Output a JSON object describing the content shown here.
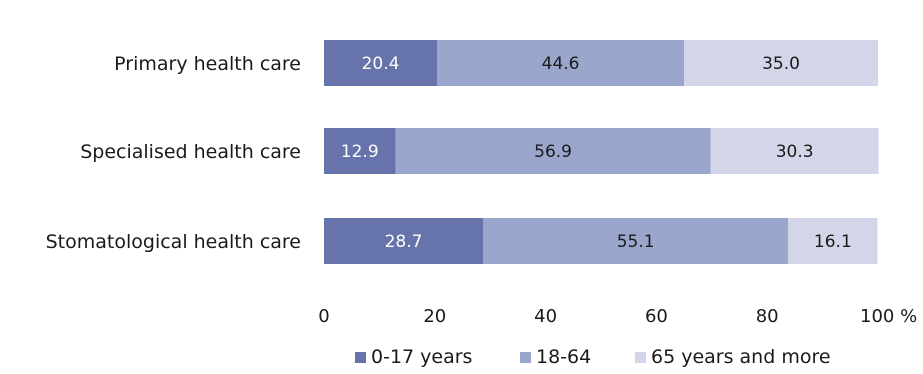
{
  "chart_data": {
    "type": "bar",
    "orientation": "horizontal",
    "stacked": true,
    "categories": [
      "Primary health care",
      "Specialised health care",
      "Stomatological health care"
    ],
    "series": [
      {
        "name": "0-17 years",
        "values": [
          20.4,
          12.9,
          28.7
        ],
        "color": "#6674ab",
        "label_color": "#ffffff"
      },
      {
        "name": "18-64",
        "values": [
          44.6,
          56.9,
          55.1
        ],
        "color": "#9aa6cc",
        "label_color": "#1a1a1a"
      },
      {
        "name": "65 years and more",
        "values": [
          35.0,
          30.3,
          16.1
        ],
        "color": "#d2d6e8",
        "label_color": "#1a1a1a"
      }
    ],
    "value_labels": [
      [
        "20.4",
        "44.6",
        "35.0"
      ],
      [
        "12.9",
        "56.9",
        "30.3"
      ],
      [
        "28.7",
        "55.1",
        "16.1"
      ]
    ],
    "xlim": [
      0,
      100
    ],
    "xticks": [
      0,
      20,
      40,
      60,
      80,
      100
    ],
    "xtick_labels": [
      "0",
      "20",
      "40",
      "60",
      "80",
      "100 %"
    ],
    "title": "",
    "xlabel": "",
    "ylabel": "",
    "grid": false,
    "legend_position": "bottom"
  }
}
